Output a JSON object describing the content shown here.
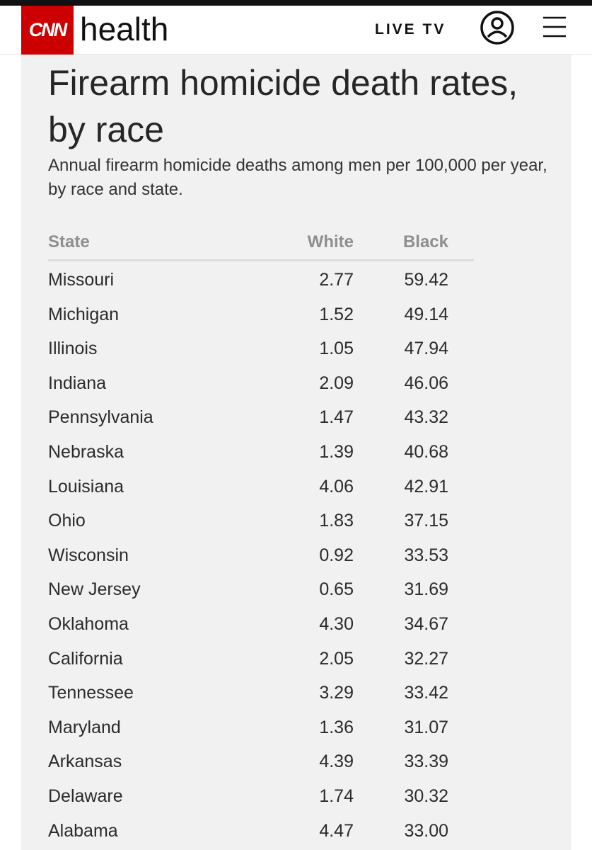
{
  "header": {
    "logo": "CNN",
    "section": "health",
    "live": "LIVE TV"
  },
  "article": {
    "title": "Firearm homicide death rates, by race",
    "subtitle": "Annual firearm homicide deaths among men per 100,000 per year, by race and state."
  },
  "table": {
    "columns": [
      "State",
      "White",
      "Black"
    ],
    "rows": [
      [
        "Missouri",
        "2.77",
        "59.42"
      ],
      [
        "Michigan",
        "1.52",
        "49.14"
      ],
      [
        "Illinois",
        "1.05",
        "47.94"
      ],
      [
        "Indiana",
        "2.09",
        "46.06"
      ],
      [
        "Pennsylvania",
        "1.47",
        "43.32"
      ],
      [
        "Nebraska",
        "1.39",
        "40.68"
      ],
      [
        "Louisiana",
        "4.06",
        "42.91"
      ],
      [
        "Ohio",
        "1.83",
        "37.15"
      ],
      [
        "Wisconsin",
        "0.92",
        "33.53"
      ],
      [
        "New Jersey",
        "0.65",
        "31.69"
      ],
      [
        "Oklahoma",
        "4.30",
        "34.67"
      ],
      [
        "California",
        "2.05",
        "32.27"
      ],
      [
        "Tennessee",
        "3.29",
        "33.42"
      ],
      [
        "Maryland",
        "1.36",
        "31.07"
      ],
      [
        "Arkansas",
        "4.39",
        "33.39"
      ],
      [
        "Delaware",
        "1.74",
        "30.32"
      ],
      [
        "Alabama",
        "4.47",
        "33.00"
      ]
    ]
  }
}
